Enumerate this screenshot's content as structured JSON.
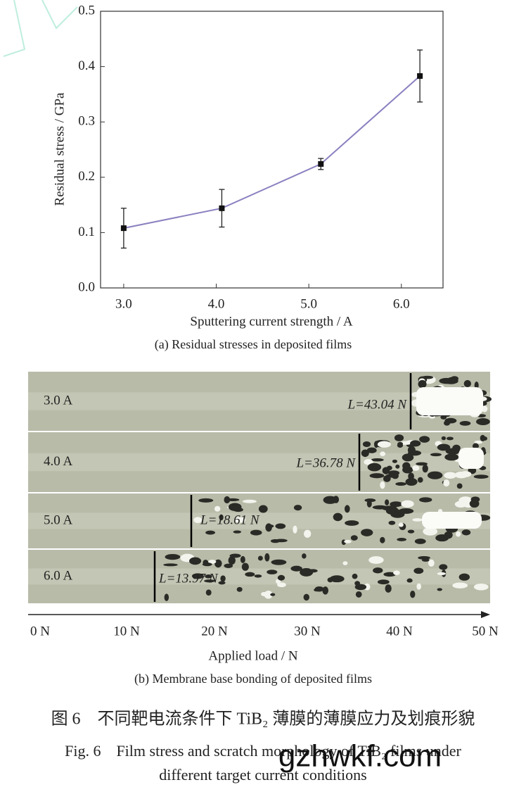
{
  "chart_data": {
    "type": "line",
    "x_label": "Sputtering current strength / A",
    "y_label": "Residual stress / GPa",
    "caption": "(a) Residual stresses in deposited films",
    "x": [
      3.0,
      4.06,
      5.13,
      6.2
    ],
    "values": [
      0.108,
      0.144,
      0.224,
      0.383
    ],
    "errors": [
      0.036,
      0.034,
      0.01,
      0.047
    ],
    "color": "#8a80c0",
    "xlim": [
      2.75,
      6.45
    ],
    "xticks": [
      {
        "value": 3,
        "label": "3.0"
      },
      {
        "value": 4,
        "label": "4.0"
      },
      {
        "value": 5,
        "label": "5.0"
      },
      {
        "value": 6,
        "label": "6.0"
      }
    ],
    "ylim": [
      0,
      0.5
    ],
    "yticks": [
      {
        "value": 0,
        "label": "0.0"
      },
      0.1,
      0.2,
      0.3,
      0.4,
      0.5
    ],
    "grid": false
  },
  "scratch": {
    "rows": [
      {
        "label": "3.0 A",
        "load": "L=43.04 N"
      },
      {
        "label": "4.0 A",
        "load": "L=36.78 N"
      },
      {
        "label": "5.0 A",
        "load": "L=18.61 N"
      },
      {
        "label": "6.0 A",
        "load": "L=13.97 N"
      }
    ],
    "axis_ticks": [
      "0 N",
      "10 N",
      "20 N",
      "30 N",
      "40 N",
      "50 N"
    ],
    "axis_label": "Applied load / N",
    "caption": "(b) Membrane base bonding of deposited films"
  },
  "figure": {
    "caption_cn": "图 6　不同靶电流条件下 TiB₂ 薄膜的薄膜应力及划痕形貌",
    "caption_en_1": "Fig. 6　Film stress and scratch morphology of TiB₂ films under",
    "caption_en_2": "different target current conditions",
    "watermark": "gzhwkf.com"
  }
}
